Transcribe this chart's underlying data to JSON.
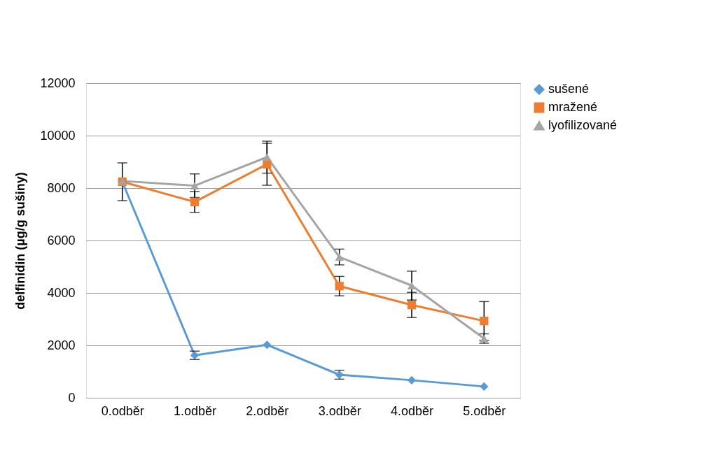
{
  "chart_data": {
    "type": "line",
    "ylabel": "delfinidin (µg/g sušiny)",
    "categories": [
      "0.odběr",
      "1.odběr",
      "2.odběr",
      "3.odběr",
      "4.odběr",
      "5.odběr"
    ],
    "series": [
      {
        "name": "sušené",
        "color": "#5b9bd5",
        "marker": "diamond",
        "values": [
          8240,
          1620,
          2020,
          880,
          670,
          430
        ],
        "errors": [
          null,
          160,
          null,
          170,
          null,
          null
        ]
      },
      {
        "name": "mražené",
        "color": "#ed7d31",
        "marker": "square",
        "values": [
          8240,
          7470,
          8910,
          4260,
          3540,
          2930
        ],
        "errors": [
          720,
          400,
          800,
          370,
          480,
          740
        ]
      },
      {
        "name": "lyofilizované",
        "color": "#a5a5a5",
        "marker": "triangle",
        "values": [
          8270,
          8090,
          9180,
          5370,
          4280,
          2260
        ],
        "errors": [
          null,
          450,
          610,
          300,
          550,
          180
        ]
      }
    ],
    "ylim": [
      0,
      12000
    ],
    "yticks": [
      0,
      2000,
      4000,
      6000,
      8000,
      10000,
      12000
    ],
    "grid": "y",
    "legend": "right",
    "line_style": "solid"
  }
}
